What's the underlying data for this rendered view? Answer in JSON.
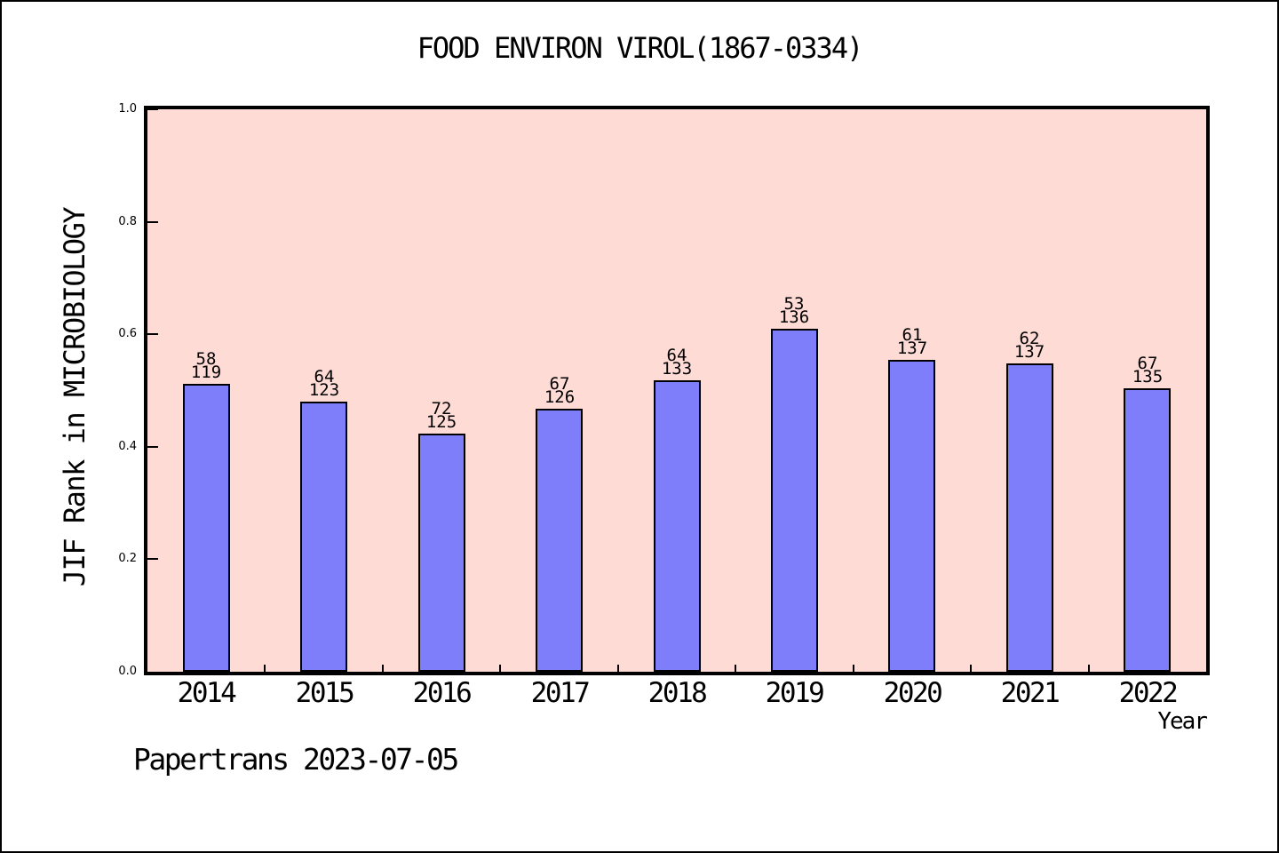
{
  "title": "FOOD ENVIRON VIROL(1867-0334)",
  "footer": "Papertrans 2023-07-05",
  "colors": {
    "bar_fill": "#7e7efa",
    "bar_edge": "#000000",
    "plot_bg": "#ffdbd6",
    "axis": "#000000",
    "text": "#000000"
  },
  "chart_data": {
    "type": "bar",
    "title": "FOOD ENVIRON VIROL(1867-0334)",
    "xlabel": "Year",
    "ylabel": "JIF Rank in MICROBIOLOGY",
    "ylim": [
      0.0,
      1.0
    ],
    "ytick_labels": [
      "0.0",
      "0.2",
      "0.4",
      "0.6",
      "0.8",
      "1.0"
    ],
    "grid": false,
    "legend": null,
    "categories": [
      "2014",
      "2015",
      "2016",
      "2017",
      "2018",
      "2019",
      "2020",
      "2021",
      "2022"
    ],
    "bar_label_note": "each bar labeled with rank (top line) over total (bottom line); bar height = 1 - rank/total",
    "series": [
      {
        "year": "2014",
        "rank": 58,
        "total": 119,
        "value": 0.5126
      },
      {
        "year": "2015",
        "rank": 64,
        "total": 123,
        "value": 0.4797
      },
      {
        "year": "2016",
        "rank": 72,
        "total": 125,
        "value": 0.424
      },
      {
        "year": "2017",
        "rank": 67,
        "total": 126,
        "value": 0.4683
      },
      {
        "year": "2018",
        "rank": 64,
        "total": 133,
        "value": 0.5188
      },
      {
        "year": "2019",
        "rank": 53,
        "total": 136,
        "value": 0.6103
      },
      {
        "year": "2020",
        "rank": 61,
        "total": 137,
        "value": 0.5547
      },
      {
        "year": "2021",
        "rank": 62,
        "total": 137,
        "value": 0.5474
      },
      {
        "year": "2022",
        "rank": 67,
        "total": 135,
        "value": 0.5037
      }
    ]
  }
}
